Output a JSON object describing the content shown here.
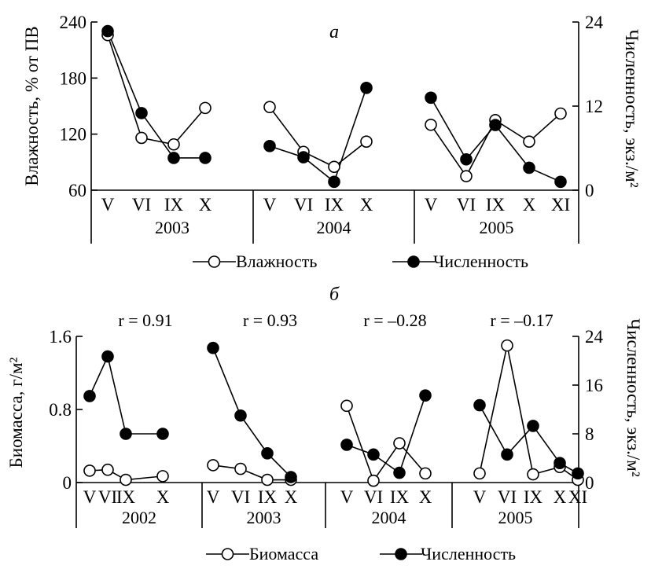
{
  "chart_data": [
    {
      "panel": "а",
      "type": "line",
      "ylabel_left": "Влажность, % от ПВ",
      "ylabel_right": "Численность, экз./м²",
      "ylim_left": [
        60,
        240
      ],
      "yticks_left": [
        "60",
        "120",
        "180",
        "240"
      ],
      "ylim_right": [
        0,
        24
      ],
      "yticks_right": [
        "0",
        "12",
        "24"
      ],
      "groups": [
        {
          "label": "2003",
          "months": [
            "V",
            "VI",
            "IX",
            "X"
          ],
          "moisture": [
            226,
            116,
            109,
            148
          ],
          "abundance": [
            22.7,
            11.0,
            4.6,
            4.6
          ]
        },
        {
          "label": "2004",
          "months": [
            "V",
            "VI",
            "IX",
            "X"
          ],
          "moisture": [
            149,
            101,
            85,
            112
          ],
          "abundance": [
            6.3,
            4.7,
            1.2,
            14.6
          ]
        },
        {
          "label": "2005",
          "months": [
            "V",
            "VI",
            "IX",
            "X",
            "XI"
          ],
          "moisture": [
            130,
            75,
            135,
            112,
            142
          ],
          "abundance": [
            13.2,
            4.4,
            9.3,
            3.2,
            1.2
          ]
        }
      ],
      "legend": [
        "Влажность",
        "Численность"
      ]
    },
    {
      "panel": "б",
      "type": "line",
      "ylabel_left": "Биомасса, г/м²",
      "ylabel_right": "Численность, экз./м²",
      "ylim_left": [
        0,
        1.6
      ],
      "yticks_left": [
        "0",
        "0.8",
        "1.6"
      ],
      "ylim_right": [
        0,
        24
      ],
      "yticks_right": [
        "0",
        "8",
        "16",
        "24"
      ],
      "groups": [
        {
          "label": "2002",
          "months": [
            "V",
            "VI",
            "IX",
            "X"
          ],
          "r": "r = 0.91",
          "biomass": [
            0.13,
            0.14,
            0.03,
            0.07
          ],
          "abundance": [
            14.2,
            20.7,
            8.0,
            8.0
          ]
        },
        {
          "label": "2003",
          "months": [
            "V",
            "VI",
            "IX",
            "X"
          ],
          "r": "r = 0.93",
          "biomass": [
            0.19,
            0.15,
            0.03,
            0.03
          ],
          "abundance": [
            22.1,
            11.0,
            4.8,
            0.9
          ]
        },
        {
          "label": "2004",
          "months": [
            "V",
            "VI",
            "IX",
            "X"
          ],
          "r": "r = –0.28",
          "biomass": [
            0.84,
            0.02,
            0.43,
            0.1
          ],
          "abundance": [
            6.2,
            4.6,
            1.6,
            14.3
          ]
        },
        {
          "label": "2005",
          "months": [
            "V",
            "VI",
            "IX",
            "X",
            "XI"
          ],
          "r": "r = –0.17",
          "biomass": [
            0.1,
            1.5,
            0.09,
            0.17,
            0.03
          ],
          "abundance": [
            12.7,
            4.6,
            9.3,
            3.2,
            1.5
          ]
        }
      ],
      "legend": [
        "Биомасса",
        "Численность"
      ]
    }
  ]
}
